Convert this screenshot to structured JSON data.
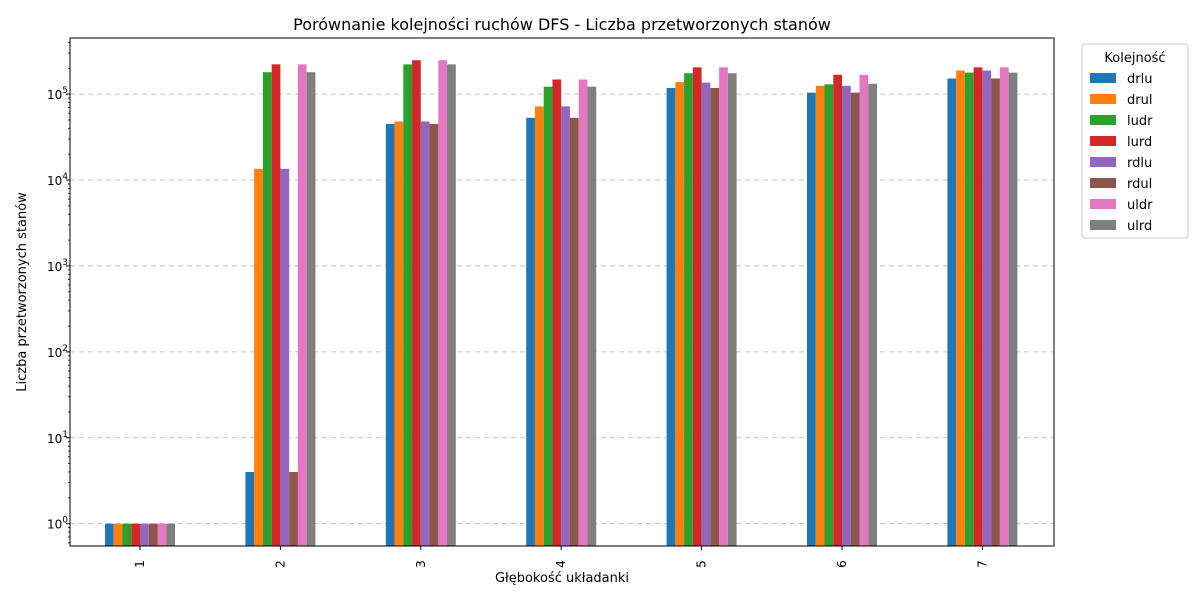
{
  "chart_data": {
    "type": "bar",
    "title": "Porównanie kolejności ruchów DFS - Liczba przetworzonych stanów",
    "xlabel": "Głębokość układanki",
    "ylabel": "Liczba przetworzonych stanów",
    "yscale": "log",
    "ylim": [
      0.55,
      450000
    ],
    "grid": "y-dashed",
    "categories": [
      "1",
      "2",
      "3",
      "4",
      "5",
      "6",
      "7"
    ],
    "yticks": [
      {
        "value": 1,
        "base": "10",
        "exp": "0"
      },
      {
        "value": 10,
        "base": "10",
        "exp": "1"
      },
      {
        "value": 100,
        "base": "10",
        "exp": "2"
      },
      {
        "value": 1000,
        "base": "10",
        "exp": "3"
      },
      {
        "value": 10000,
        "base": "10",
        "exp": "4"
      },
      {
        "value": 100000,
        "base": "10",
        "exp": "5"
      }
    ],
    "legend": {
      "title": "Kolejność",
      "placement": "outside-top-right"
    },
    "series": [
      {
        "name": "drlu",
        "color": "#1f77b4",
        "values": [
          1,
          4,
          45000,
          53000,
          118000,
          104000,
          152000
        ]
      },
      {
        "name": "drul",
        "color": "#ff7f0e",
        "values": [
          1,
          13500,
          48000,
          72000,
          138000,
          125000,
          188000
        ]
      },
      {
        "name": "ludr",
        "color": "#2ca02c",
        "values": [
          1,
          180000,
          222000,
          122000,
          175000,
          130000,
          178000
        ]
      },
      {
        "name": "lurd",
        "color": "#d62728",
        "values": [
          1,
          222000,
          248000,
          148000,
          205000,
          168000,
          205000
        ]
      },
      {
        "name": "rdlu",
        "color": "#9467bd",
        "values": [
          1,
          13500,
          48000,
          72000,
          136000,
          125000,
          188000
        ]
      },
      {
        "name": "rdul",
        "color": "#8c564b",
        "values": [
          1,
          4,
          45000,
          53000,
          118000,
          104000,
          152000
        ]
      },
      {
        "name": "uldr",
        "color": "#e377c2",
        "values": [
          1,
          222000,
          248000,
          148000,
          205000,
          168000,
          205000
        ]
      },
      {
        "name": "ulrd",
        "color": "#7f7f7f",
        "values": [
          1,
          180000,
          222000,
          122000,
          175000,
          132000,
          178000
        ]
      }
    ]
  }
}
